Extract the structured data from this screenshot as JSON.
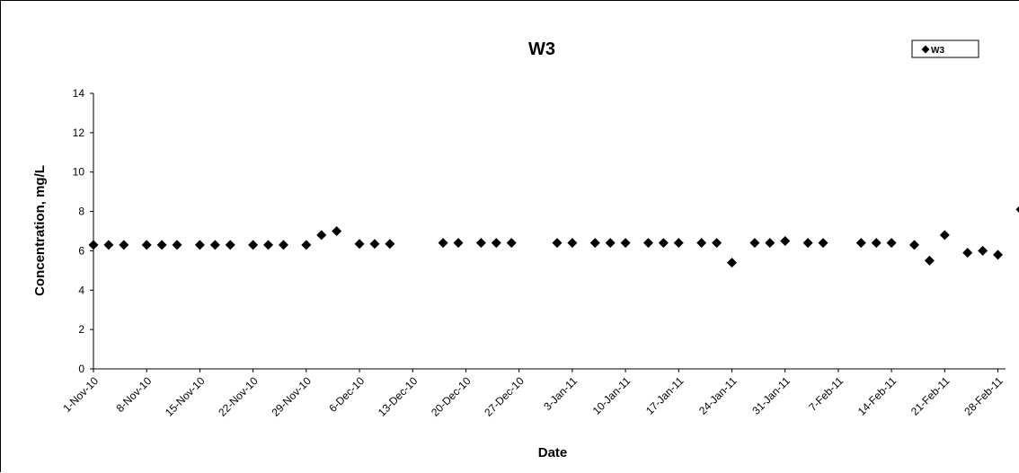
{
  "chart_data": {
    "type": "scatter",
    "title": "W3",
    "xlabel": "Date",
    "ylabel": "Concentration, mg/L",
    "ylim": [
      0,
      14
    ],
    "yticks": [
      0,
      2,
      4,
      6,
      8,
      10,
      12,
      14
    ],
    "xlim": [
      "2010-11-01",
      "2011-03-01"
    ],
    "xtick_labels": [
      "1-Nov-10",
      "8-Nov-10",
      "15-Nov-10",
      "22-Nov-10",
      "29-Nov-10",
      "6-Dec-10",
      "13-Dec-10",
      "20-Dec-10",
      "27-Dec-10",
      "3-Jan-11",
      "10-Jan-11",
      "17-Jan-11",
      "24-Jan-11",
      "31-Jan-11",
      "7-Feb-11",
      "14-Feb-11",
      "21-Feb-11",
      "28-Feb-11"
    ],
    "xtick_dates": [
      "2010-11-01",
      "2010-11-08",
      "2010-11-15",
      "2010-11-22",
      "2010-11-29",
      "2010-12-06",
      "2010-12-13",
      "2010-12-20",
      "2010-12-27",
      "2011-01-03",
      "2011-01-10",
      "2011-01-17",
      "2011-01-24",
      "2011-01-31",
      "2011-02-07",
      "2011-02-14",
      "2011-02-21",
      "2011-02-28"
    ],
    "grid": false,
    "legend": "top-right",
    "marker_color": "#000000",
    "series": [
      {
        "name": "W3",
        "x": [
          "2010-11-01",
          "2010-11-03",
          "2010-11-05",
          "2010-11-08",
          "2010-11-10",
          "2010-11-12",
          "2010-11-15",
          "2010-11-17",
          "2010-11-19",
          "2010-11-22",
          "2010-11-24",
          "2010-11-26",
          "2010-11-29",
          "2010-12-01",
          "2010-12-03",
          "2010-12-06",
          "2010-12-08",
          "2010-12-10",
          "2010-12-17",
          "2010-12-19",
          "2010-12-22",
          "2010-12-24",
          "2010-12-26",
          "2011-01-01",
          "2011-01-03",
          "2011-01-06",
          "2011-01-08",
          "2011-01-10",
          "2011-01-13",
          "2011-01-15",
          "2011-01-17",
          "2011-01-20",
          "2011-01-22",
          "2011-01-24",
          "2011-01-27",
          "2011-01-29",
          "2011-01-31",
          "2011-02-03",
          "2011-02-05",
          "2011-02-10",
          "2011-02-12",
          "2011-02-14",
          "2011-02-17",
          "2011-02-19",
          "2011-02-21",
          "2011-02-24",
          "2011-02-26",
          "2011-02-28",
          "2011-03-03"
        ],
        "y": [
          6.3,
          6.3,
          6.3,
          6.3,
          6.3,
          6.3,
          6.3,
          6.3,
          6.3,
          6.3,
          6.3,
          6.3,
          6.3,
          6.8,
          7.0,
          6.35,
          6.35,
          6.35,
          6.4,
          6.4,
          6.4,
          6.4,
          6.4,
          6.4,
          6.4,
          6.4,
          6.4,
          6.4,
          6.4,
          6.4,
          6.4,
          6.4,
          6.4,
          5.4,
          6.4,
          6.4,
          6.5,
          6.4,
          6.4,
          6.4,
          6.4,
          6.4,
          6.3,
          5.5,
          6.8,
          5.9,
          6.0,
          5.8,
          8.1
        ]
      }
    ]
  }
}
